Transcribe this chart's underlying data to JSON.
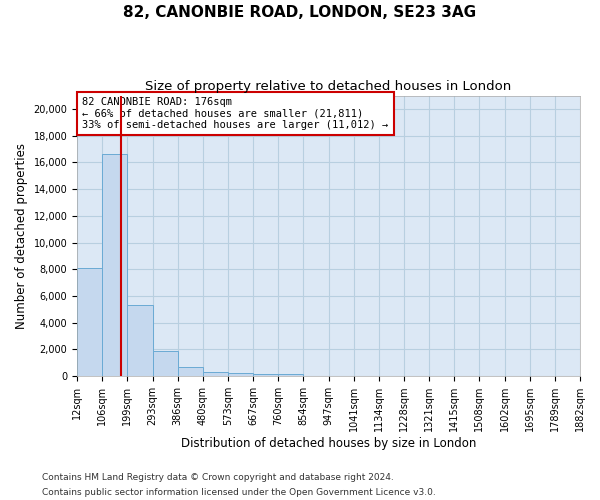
{
  "title1": "82, CANONBIE ROAD, LONDON, SE23 3AG",
  "title2": "Size of property relative to detached houses in London",
  "xlabel": "Distribution of detached houses by size in London",
  "ylabel": "Number of detached properties",
  "property_line_label": "82 CANONBIE ROAD: 176sqm",
  "annotation_line1": "← 66% of detached houses are smaller (21,811)",
  "annotation_line2": "33% of semi-detached houses are larger (11,012) →",
  "footer1": "Contains HM Land Registry data © Crown copyright and database right 2024.",
  "footer2": "Contains public sector information licensed under the Open Government Licence v3.0.",
  "bin_labels": [
    "12sqm",
    "106sqm",
    "199sqm",
    "293sqm",
    "386sqm",
    "480sqm",
    "573sqm",
    "667sqm",
    "760sqm",
    "854sqm",
    "947sqm",
    "1041sqm",
    "1134sqm",
    "1228sqm",
    "1321sqm",
    "1415sqm",
    "1508sqm",
    "1602sqm",
    "1695sqm",
    "1789sqm",
    "1882sqm"
  ],
  "bar_heights": [
    8100,
    16600,
    5300,
    1850,
    700,
    350,
    270,
    200,
    170,
    0,
    0,
    0,
    0,
    0,
    0,
    0,
    0,
    0,
    0,
    0
  ],
  "bar_color": "#c5d8ee",
  "bar_edge_color": "#6aaad4",
  "vline_bin": 1.76,
  "vline_color": "#cc0000",
  "box_color": "#cc0000",
  "ylim": [
    0,
    21000
  ],
  "yticks": [
    0,
    2000,
    4000,
    6000,
    8000,
    10000,
    12000,
    14000,
    16000,
    18000,
    20000
  ],
  "background_color": "#ffffff",
  "plot_bg_color": "#dce8f5",
  "grid_color": "#b8cfe0",
  "title1_fontsize": 11,
  "title2_fontsize": 9.5,
  "xlabel_fontsize": 8.5,
  "ylabel_fontsize": 8.5,
  "tick_fontsize": 7,
  "annot_fontsize": 7.5
}
